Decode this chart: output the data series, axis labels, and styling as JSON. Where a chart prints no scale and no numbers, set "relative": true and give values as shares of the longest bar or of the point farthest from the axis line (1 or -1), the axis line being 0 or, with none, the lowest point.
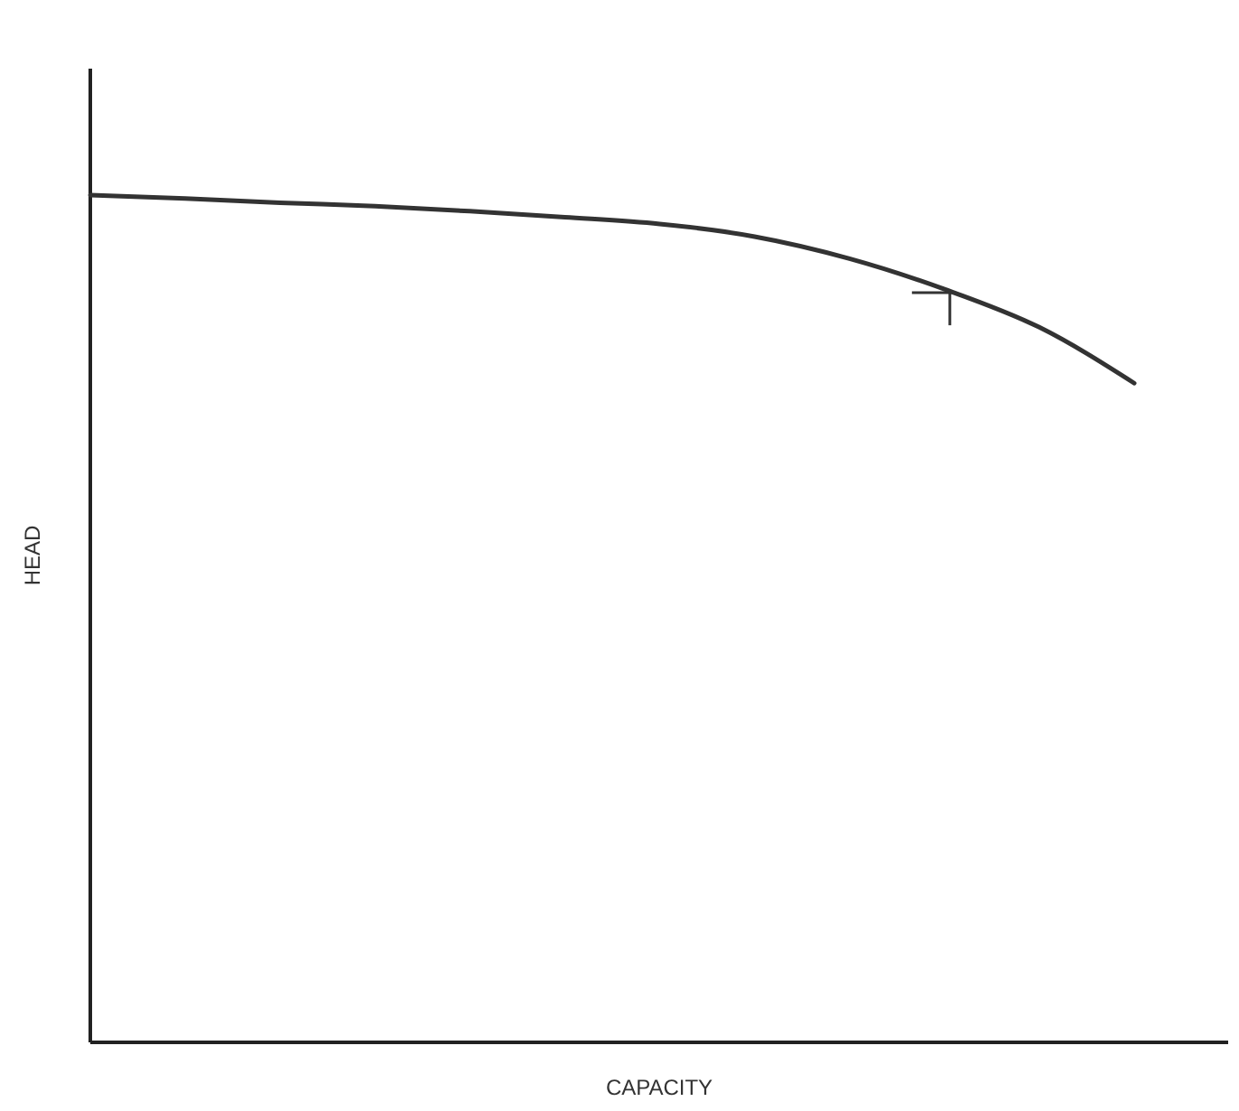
{
  "chart_data": {
    "type": "line",
    "relative": true,
    "xlabel": "CAPACITY",
    "ylabel": "HEAD",
    "categories": [
      null,
      null,
      null,
      null,
      null,
      null,
      null,
      null,
      null,
      null,
      null,
      null
    ],
    "series": [
      {
        "color": "#333333",
        "values": [
          1,
          0.996,
          0.991,
          0.987,
          0.981,
          0.974,
          0.966,
          0.951,
          0.925,
          0.889,
          0.844,
          0.778
        ]
      }
    ],
    "marker": "none",
    "line_style": "solid"
  }
}
